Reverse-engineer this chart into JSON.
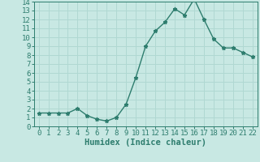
{
  "x": [
    0,
    1,
    2,
    3,
    4,
    5,
    6,
    7,
    8,
    9,
    10,
    11,
    12,
    13,
    14,
    15,
    16,
    17,
    18,
    19,
    20,
    21,
    22
  ],
  "y": [
    1.5,
    1.5,
    1.5,
    1.5,
    2.0,
    1.2,
    0.8,
    0.6,
    1.0,
    2.5,
    5.5,
    9.0,
    10.7,
    11.7,
    13.2,
    12.5,
    14.3,
    12.0,
    9.8,
    8.8,
    8.8,
    8.3,
    7.8
  ],
  "line_color": "#2e7d6e",
  "marker": "*",
  "bg_color": "#c8e8e3",
  "grid_color": "#b0d8d2",
  "xlabel": "Humidex (Indice chaleur)",
  "xlim": [
    -0.5,
    22.5
  ],
  "ylim": [
    0,
    14
  ],
  "xticks": [
    0,
    1,
    2,
    3,
    4,
    5,
    6,
    7,
    8,
    9,
    10,
    11,
    12,
    13,
    14,
    15,
    16,
    17,
    18,
    19,
    20,
    21,
    22
  ],
  "yticks": [
    0,
    1,
    2,
    3,
    4,
    5,
    6,
    7,
    8,
    9,
    10,
    11,
    12,
    13,
    14
  ],
  "tick_fontsize": 6.5,
  "xlabel_fontsize": 7.5,
  "line_width": 1.0,
  "marker_size": 3.5
}
